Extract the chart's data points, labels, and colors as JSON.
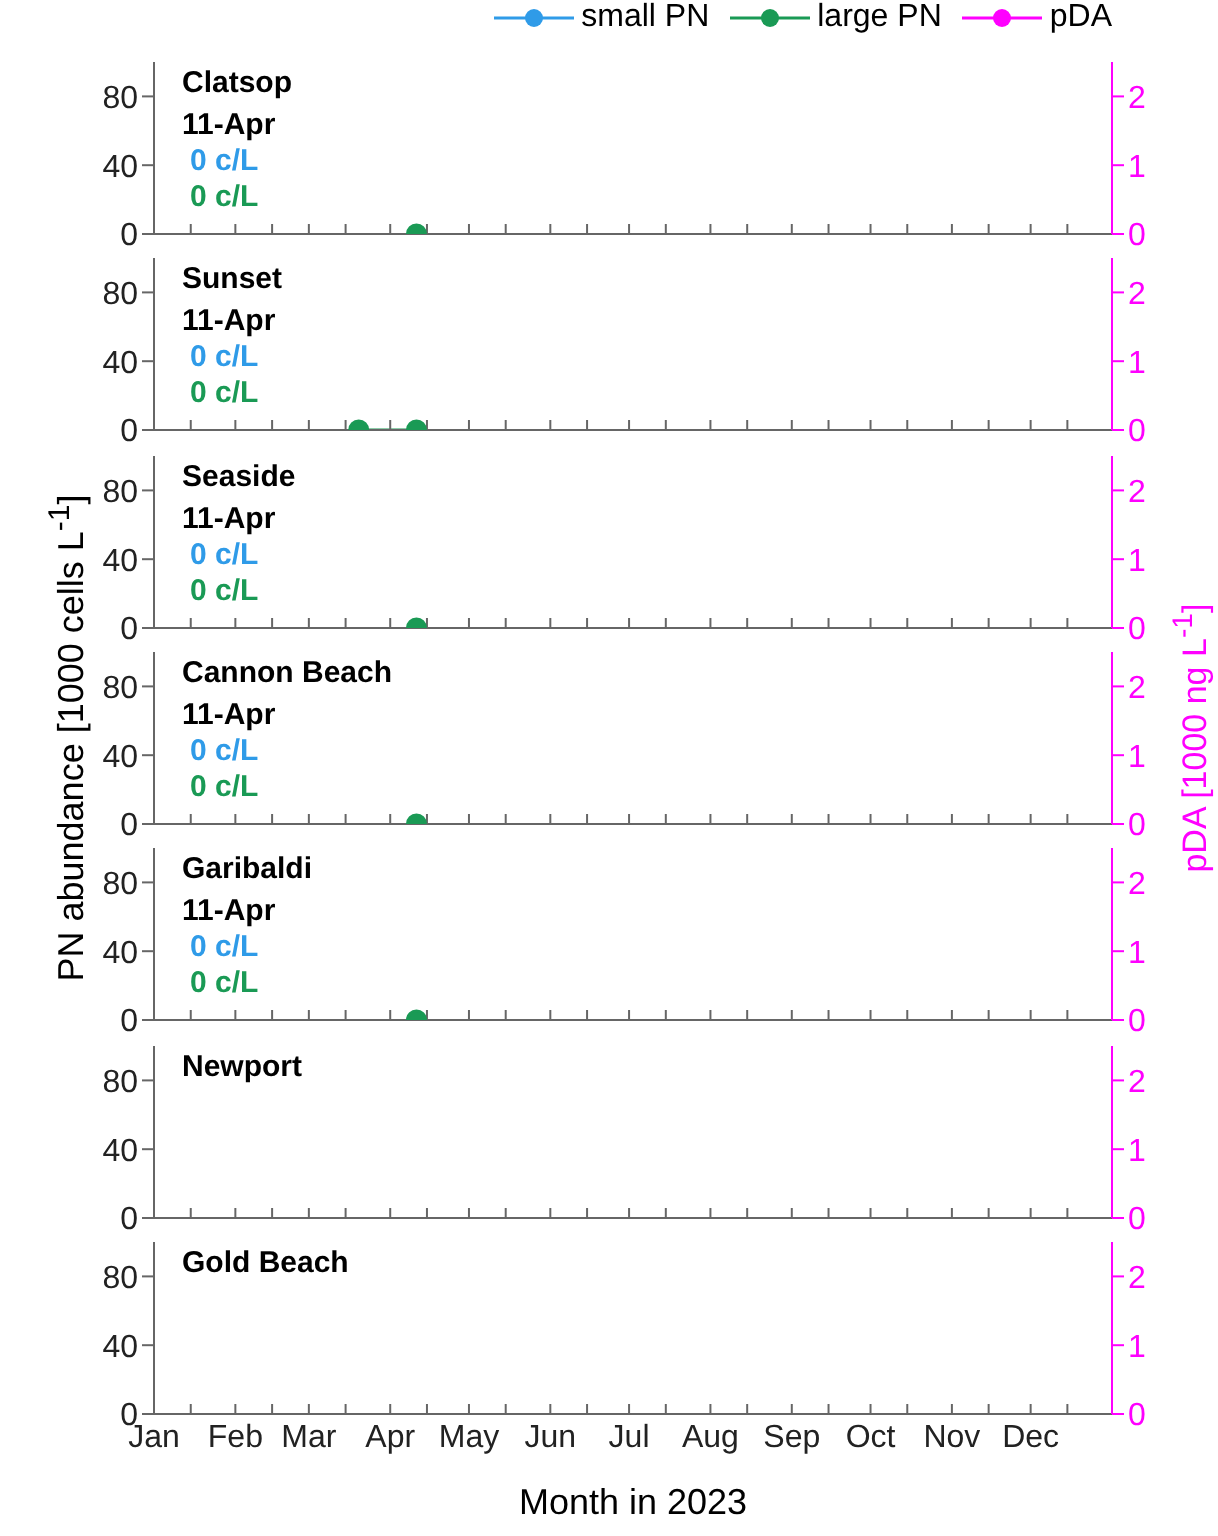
{
  "chart_data": [
    {
      "type": "line",
      "title": "Clatsop",
      "annotations": [
        "11-Apr",
        "0 c/L",
        "0 c/L"
      ],
      "legend": "top right",
      "marker": "circle",
      "tick_labels": "y",
      "xlim": [
        "2023-01-01",
        "2024-01-01"
      ],
      "ylim": [
        0,
        100
      ],
      "yticks": [
        0,
        40,
        80
      ],
      "y2lim": [
        0,
        2.5
      ],
      "y2ticks": [
        0,
        1,
        2
      ],
      "series": [
        {
          "name": "small PN",
          "color": "#2f9be8"
        },
        {
          "name": "large PN",
          "color": "#1a9a55",
          "x": [
            "2023-04-11"
          ],
          "values": [
            0
          ]
        },
        {
          "name": "pDA",
          "color": "#ff00ff",
          "axis": "y2"
        }
      ]
    },
    {
      "type": "line",
      "title": "Sunset",
      "annotations": [
        "11-Apr",
        "0 c/L",
        "0 c/L"
      ],
      "marker": "circle",
      "tick_labels": "y",
      "xlim": [
        "2023-01-01",
        "2024-01-01"
      ],
      "ylim": [
        0,
        100
      ],
      "yticks": [
        0,
        40,
        80
      ],
      "y2lim": [
        0,
        2.5
      ],
      "y2ticks": [
        0,
        1,
        2
      ],
      "series": [
        {
          "color": "#1a9a55",
          "x": [
            "2023-03-20",
            "2023-04-11"
          ],
          "values": [
            0,
            0
          ]
        }
      ]
    },
    {
      "type": "line",
      "title": "Seaside",
      "annotations": [
        "11-Apr",
        "0 c/L",
        "0 c/L"
      ],
      "marker": "circle",
      "tick_labels": "y",
      "xlim": [
        "2023-01-01",
        "2024-01-01"
      ],
      "ylim": [
        0,
        100
      ],
      "yticks": [
        0,
        40,
        80
      ],
      "y2lim": [
        0,
        2.5
      ],
      "y2ticks": [
        0,
        1,
        2
      ],
      "series": [
        {
          "color": "#1a9a55",
          "x": [
            "2023-04-11"
          ],
          "values": [
            0
          ]
        }
      ]
    },
    {
      "type": "line",
      "title": "Cannon Beach",
      "annotations": [
        "11-Apr",
        "0 c/L",
        "0 c/L"
      ],
      "ylabel": "PN abundance [1000 cells L$^{-1}$]",
      "y2label": "pDA [1000 ng L$^{-1}$]",
      "marker": "circle",
      "tick_labels": "y",
      "xlim": [
        "2023-01-01",
        "2024-01-01"
      ],
      "ylim": [
        0,
        100
      ],
      "yticks": [
        0,
        40,
        80
      ],
      "y2lim": [
        0,
        2.5
      ],
      "y2ticks": [
        0,
        1,
        2
      ],
      "series": [
        {
          "color": "#1a9a55",
          "x": [
            "2023-04-11"
          ],
          "values": [
            0
          ]
        }
      ]
    },
    {
      "type": "line",
      "title": "Garibaldi",
      "annotations": [
        "11-Apr",
        "0 c/L",
        "0 c/L"
      ],
      "marker": "circle",
      "tick_labels": "y",
      "xlim": [
        "2023-01-01",
        "2024-01-01"
      ],
      "ylim": [
        0,
        100
      ],
      "yticks": [
        0,
        40,
        80
      ],
      "y2lim": [
        0,
        2.5
      ],
      "y2ticks": [
        0,
        1,
        2
      ],
      "series": [
        {
          "color": "#1a9a55",
          "x": [
            "2023-04-11"
          ],
          "values": [
            0
          ]
        }
      ]
    },
    {
      "type": "line",
      "title": "Newport",
      "tick_labels": "y",
      "xlim": [
        "2023-01-01",
        "2024-01-01"
      ],
      "ylim": [
        0,
        100
      ],
      "yticks": [
        0,
        40,
        80
      ],
      "y2lim": [
        0,
        2.5
      ],
      "y2ticks": [
        0,
        1,
        2
      ]
    },
    {
      "type": "line",
      "title": "Gold Beach",
      "xlabel": "Month in 2023",
      "xlim": [
        "2023-01-01",
        "2024-01-01"
      ],
      "ylim": [
        0,
        100
      ],
      "yticks": [
        0,
        40,
        80
      ],
      "y2lim": [
        0,
        2.5
      ],
      "y2ticks": [
        0,
        1,
        2
      ],
      "xticks": [
        {
          "value": "2023-01-01",
          "label": "Jan"
        },
        {
          "value": "2023-01-15",
          "label": null
        },
        {
          "value": "2023-02-01",
          "label": "Feb"
        },
        {
          "value": "2023-02-15",
          "label": null
        },
        {
          "value": "2023-03-01",
          "label": "Mar"
        },
        {
          "value": "2023-03-15",
          "label": null
        },
        {
          "value": "2023-04-01",
          "label": "Apr"
        },
        {
          "value": "2023-04-15",
          "label": null
        },
        {
          "value": "2023-05-01",
          "label": "May"
        },
        {
          "value": "2023-05-15",
          "label": null
        },
        {
          "value": "2023-06-01",
          "label": "Jun"
        },
        {
          "value": "2023-06-15",
          "label": null
        },
        {
          "value": "2023-07-01",
          "label": "Jul"
        },
        {
          "value": "2023-07-15",
          "label": null
        },
        {
          "value": "2023-08-01",
          "label": "Aug"
        },
        {
          "value": "2023-08-15",
          "label": null
        },
        {
          "value": "2023-09-01",
          "label": "Sep"
        },
        {
          "value": "2023-09-15",
          "label": null
        },
        {
          "value": "2023-10-01",
          "label": "Oct"
        },
        {
          "value": "2023-10-15",
          "label": null
        },
        {
          "value": "2023-11-01",
          "label": "Nov"
        },
        {
          "value": "2023-11-15",
          "label": null
        },
        {
          "value": "2023-12-01",
          "label": "Dec"
        },
        {
          "value": "2023-12-15",
          "label": null
        }
      ]
    }
  ]
}
